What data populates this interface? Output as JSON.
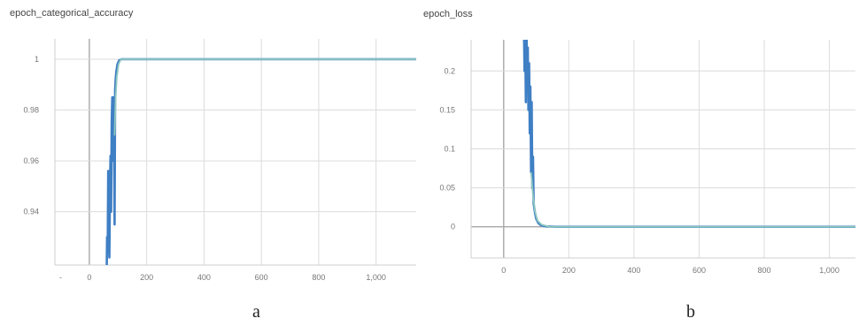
{
  "chart_data": [
    {
      "type": "line",
      "title": "epoch_categorical_accuracy",
      "panel_label": "a",
      "xlim": [
        -120,
        1140
      ],
      "ylim": [
        0.919,
        1.008
      ],
      "x_ticks": [
        0,
        200,
        400,
        600,
        800,
        1000
      ],
      "x_tick_labels": [
        "0",
        "200",
        "400",
        "600",
        "800",
        "1,000"
      ],
      "x_extra_label": "-",
      "y_ticks": [
        0.94,
        0.96,
        0.98,
        1
      ],
      "y_tick_labels": [
        "0.94",
        "0.96",
        "0.98",
        "1"
      ],
      "grid": true,
      "series": [
        {
          "color": "#3f7fc4",
          "points": [
            [
              60,
              0.91
            ],
            [
              62,
              0.93
            ],
            [
              64,
              0.925
            ],
            [
              66,
              0.956
            ],
            [
              68,
              0.93
            ],
            [
              70,
              0.922
            ],
            [
              72,
              0.95
            ],
            [
              74,
              0.962
            ],
            [
              76,
              0.94
            ],
            [
              78,
              0.975
            ],
            [
              80,
              0.985
            ],
            [
              82,
              0.96
            ],
            [
              84,
              0.985
            ],
            [
              86,
              0.978
            ],
            [
              88,
              0.935
            ],
            [
              90,
              0.988
            ],
            [
              92,
              0.992
            ],
            [
              94,
              0.995
            ],
            [
              98,
              0.998
            ],
            [
              104,
              0.9995
            ],
            [
              112,
              1.0
            ],
            [
              130,
              1.0
            ],
            [
              300,
              1.0
            ],
            [
              600,
              1.0
            ],
            [
              900,
              1.0
            ],
            [
              1140,
              1.0
            ]
          ]
        },
        {
          "color": "#8fc8c0",
          "points": [
            [
              88,
              0.97
            ],
            [
              92,
              0.985
            ],
            [
              96,
              0.993
            ],
            [
              102,
              0.998
            ],
            [
              110,
              1.0
            ],
            [
              130,
              1.0
            ],
            [
              400,
              1.0
            ],
            [
              800,
              1.0
            ],
            [
              1140,
              1.0
            ]
          ]
        }
      ]
    },
    {
      "type": "line",
      "title": "epoch_loss",
      "panel_label": "b",
      "xlim": [
        -100,
        1080
      ],
      "ylim": [
        -0.04,
        0.24
      ],
      "x_ticks": [
        0,
        200,
        400,
        600,
        800,
        1000
      ],
      "x_tick_labels": [
        "0",
        "200",
        "400",
        "600",
        "800",
        "1,000"
      ],
      "y_ticks": [
        0,
        0.05,
        0.1,
        0.15,
        0.2
      ],
      "y_tick_labels": [
        "0",
        "0.05",
        "0.1",
        "0.15",
        "0.2"
      ],
      "grid": true,
      "series": [
        {
          "color": "#3f7fc4",
          "points": [
            [
              62,
              0.26
            ],
            [
              64,
              0.2
            ],
            [
              66,
              0.24
            ],
            [
              68,
              0.16
            ],
            [
              70,
              0.26
            ],
            [
              72,
              0.19
            ],
            [
              74,
              0.23
            ],
            [
              76,
              0.15
            ],
            [
              78,
              0.21
            ],
            [
              80,
              0.12
            ],
            [
              82,
              0.18
            ],
            [
              84,
              0.07
            ],
            [
              86,
              0.16
            ],
            [
              88,
              0.05
            ],
            [
              90,
              0.09
            ],
            [
              92,
              0.03
            ],
            [
              96,
              0.018
            ],
            [
              100,
              0.01
            ],
            [
              106,
              0.005
            ],
            [
              114,
              0.002
            ],
            [
              130,
              0.0005
            ],
            [
              160,
              0.0
            ],
            [
              400,
              0.0
            ],
            [
              800,
              0.0
            ],
            [
              1080,
              0.0
            ]
          ]
        },
        {
          "color": "#8fc8c0",
          "points": [
            [
              84,
              0.07
            ],
            [
              90,
              0.04
            ],
            [
              96,
              0.02
            ],
            [
              104,
              0.008
            ],
            [
              116,
              0.003
            ],
            [
              140,
              0.0
            ],
            [
              1080,
              0.0
            ]
          ]
        }
      ]
    }
  ]
}
